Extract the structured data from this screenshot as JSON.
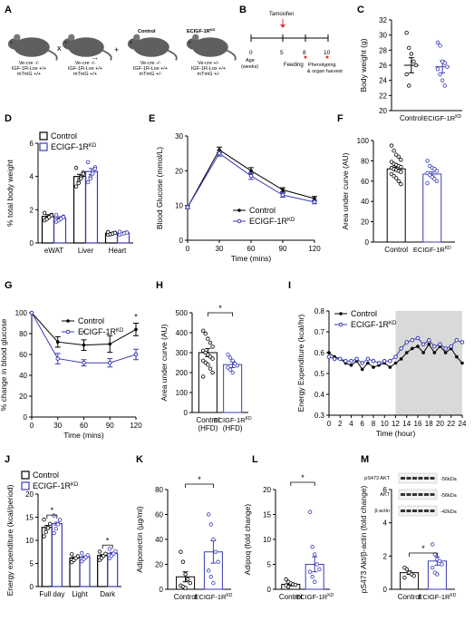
{
  "colors": {
    "control": "#000000",
    "ko": "#3b3bb8",
    "shade": "#d9d9d9",
    "mouse": "#5f5f5f"
  },
  "labels": {
    "control": "Control",
    "ko_base": "ECIGF-1R",
    "ko_sup": "KD",
    "hfd": "(HFD)",
    "star": "*"
  },
  "panel_a": {
    "letter": "A",
    "genotype_1": [
      "Ve-cre -/-",
      "IGF-1R-Lox +/+",
      "mTmG +/+"
    ],
    "genotype_2": [
      "Ve-cre -/-",
      "IGF-1R-Lox +/+",
      "mTmG +/+"
    ],
    "genotype_3": [
      "Ve-cre -/-",
      "IGF-1R-Lox +/+",
      "mTmG +/-"
    ],
    "genotype_4": [
      "Ve-cre +/-",
      "IGF-1R-Lox +/+",
      "mTmG +/-"
    ],
    "cross": "x",
    "plus": "+",
    "control_label": "Control",
    "ko_label": "ECIGF-1R",
    "ko_sup": "KD"
  },
  "panel_b": {
    "letter": "B",
    "tamoxifen": "Tamoxifen",
    "ticks": [
      "0",
      "5",
      "8",
      "10"
    ],
    "age": "Age",
    "weeks": "(weeks)",
    "feeding": "Feeding",
    "phenotyping": "Phenotyping",
    "organ_harvest": "& organ harvest"
  },
  "chart_data": [
    {
      "id": "C",
      "type": "scatter",
      "ylabel": "Body weight (g)",
      "ylim": [
        20,
        32
      ],
      "yticks": [
        "20",
        "22",
        "24",
        "26",
        "28",
        "30",
        "32"
      ],
      "categories": [
        "Control",
        "ECIGF-1R KD"
      ],
      "means": [
        26.0,
        25.8
      ],
      "sem": [
        1.0,
        0.8
      ],
      "points": [
        [
          30.3,
          28.3,
          27.5,
          26.5,
          26.0,
          24.8,
          23.3
        ],
        [
          29.0,
          28.6,
          26.5,
          26.3,
          25.8,
          25.5,
          24.8,
          24.0,
          23.3
        ]
      ]
    },
    {
      "id": "D",
      "type": "bar",
      "ylabel": "% total body weight",
      "ylim": [
        0,
        6
      ],
      "yticks": [
        "0",
        "2",
        "4",
        "6"
      ],
      "categories": [
        "eWAT",
        "Liver",
        "Heart"
      ],
      "series": [
        {
          "name": "Control",
          "values": [
            1.6,
            4.0,
            0.58
          ],
          "sem": [
            0.1,
            0.13,
            0.03
          ]
        },
        {
          "name": "ECIGF-1R KD",
          "values": [
            1.5,
            4.3,
            0.6
          ],
          "sem": [
            0.08,
            0.18,
            0.03
          ]
        }
      ],
      "legend": "top-left"
    },
    {
      "id": "E",
      "type": "line",
      "ylabel": "Blood Glucose (mmol/L)",
      "xlabel": "Time (mins)",
      "ylim": [
        0,
        30
      ],
      "yticks": [
        "0",
        "10",
        "20",
        "30"
      ],
      "x": [
        0,
        30,
        60,
        90,
        120
      ],
      "xticks": [
        "0",
        "30",
        "60",
        "90",
        "120"
      ],
      "series": [
        {
          "name": "Control",
          "values": [
            9.5,
            26.0,
            20.0,
            14.5,
            12.0
          ],
          "sem": [
            0.4,
            0.8,
            0.9,
            0.6,
            0.6
          ]
        },
        {
          "name": "ECIGF-1R KD",
          "values": [
            9.5,
            25.0,
            18.5,
            13.0,
            11.0
          ],
          "sem": [
            0.4,
            0.8,
            1.0,
            0.6,
            0.5
          ]
        }
      ],
      "legend": "bottom-right"
    },
    {
      "id": "F",
      "type": "scatter",
      "ylabel": "Area under curve (AU)",
      "ylim": [
        0,
        100
      ],
      "yticks": [
        "0",
        "20",
        "40",
        "60",
        "80",
        "100"
      ],
      "categories": [
        "Control",
        "ECIGF-1R KD"
      ],
      "means": [
        72,
        67
      ],
      "sem": [
        2,
        2
      ],
      "points": [
        [
          95,
          90,
          86,
          84,
          81,
          79,
          77,
          76,
          75,
          74,
          73,
          72,
          71,
          70,
          69,
          67,
          65,
          63,
          60,
          57
        ],
        [
          80,
          75,
          73,
          72,
          70,
          68,
          66,
          64,
          62,
          60,
          58
        ]
      ]
    },
    {
      "id": "G",
      "type": "line",
      "ylabel": "% change in blood glucose",
      "xlabel": "Time (mins)",
      "ylim": [
        0,
        100
      ],
      "yticks": [
        "0",
        "20",
        "40",
        "60",
        "80",
        "100"
      ],
      "x": [
        0,
        30,
        60,
        90,
        120
      ],
      "xticks": [
        "0",
        "30",
        "60",
        "90",
        "120"
      ],
      "series": [
        {
          "name": "Control",
          "values": [
            100,
            72,
            69,
            70,
            84
          ],
          "sem": [
            0,
            5,
            5,
            8,
            6
          ]
        },
        {
          "name": "ECIGF-1R KD",
          "values": [
            100,
            56,
            52,
            52,
            60
          ],
          "sem": [
            0,
            5,
            3,
            4,
            5
          ]
        }
      ],
      "annotations": [
        {
          "x": 60,
          "text": "*"
        },
        {
          "x": 120,
          "text": "*"
        }
      ],
      "legend": "top-right"
    },
    {
      "id": "H",
      "type": "scatter",
      "ylabel": "Area under curve (AU)",
      "ylim": [
        0,
        500
      ],
      "yticks": [
        "0",
        "100",
        "200",
        "300",
        "400",
        "500"
      ],
      "categories": [
        "Control",
        "ECIGF-1R KD"
      ],
      "means": [
        300,
        240
      ],
      "sem": [
        20,
        15
      ],
      "points": [
        [
          410,
          395,
          370,
          350,
          330,
          310,
          300,
          290,
          280,
          270,
          260,
          250,
          240,
          220,
          200,
          180
        ],
        [
          290,
          275,
          260,
          245,
          235,
          225,
          215,
          200
        ]
      ],
      "annotations": [
        {
          "text": "*"
        }
      ]
    },
    {
      "id": "I",
      "type": "line",
      "ylabel": "Energy Expenditure (kcal/hr)",
      "xlabel": "Time (hour)",
      "ylim": [
        0.3,
        0.8
      ],
      "yticks": [
        "0.3",
        "0.4",
        "0.5",
        "0.6",
        "0.7",
        "0.8"
      ],
      "xticks": [
        "0",
        "2",
        "4",
        "6",
        "8",
        "10",
        "12",
        "14",
        "16",
        "18",
        "20",
        "22",
        "24"
      ],
      "dark_phase": [
        12,
        24
      ],
      "x": [
        0,
        1,
        2,
        3,
        4,
        5,
        6,
        7,
        8,
        9,
        10,
        11,
        12,
        13,
        14,
        15,
        16,
        17,
        18,
        19,
        20,
        21,
        22,
        23,
        24
      ],
      "series": [
        {
          "name": "Control",
          "values": [
            0.6,
            0.58,
            0.57,
            0.55,
            0.54,
            0.56,
            0.52,
            0.55,
            0.53,
            0.54,
            0.55,
            0.53,
            0.55,
            0.57,
            0.6,
            0.62,
            0.63,
            0.6,
            0.64,
            0.6,
            0.63,
            0.6,
            0.62,
            0.58,
            0.55
          ]
        },
        {
          "name": "ECIGF-1R KD",
          "values": [
            0.58,
            0.57,
            0.57,
            0.56,
            0.56,
            0.57,
            0.55,
            0.57,
            0.56,
            0.55,
            0.56,
            0.56,
            0.58,
            0.62,
            0.65,
            0.66,
            0.67,
            0.64,
            0.66,
            0.63,
            0.64,
            0.62,
            0.63,
            0.66,
            0.65
          ]
        }
      ],
      "legend": "top-left"
    },
    {
      "id": "J",
      "type": "bar",
      "ylabel": "Energy expenditure (kcal/period)",
      "ylim": [
        0,
        20
      ],
      "yticks": [
        "0",
        "5",
        "10",
        "15",
        "20"
      ],
      "categories": [
        "Full day",
        "Light",
        "Dark"
      ],
      "series": [
        {
          "name": "Control",
          "values": [
            12.8,
            6.2,
            6.7
          ],
          "sem": [
            0.4,
            0.2,
            0.2
          ]
        },
        {
          "name": "ECIGF-1R KD",
          "values": [
            13.6,
            6.4,
            7.2
          ],
          "sem": [
            0.3,
            0.2,
            0.2
          ]
        }
      ],
      "annotations": [
        {
          "category": "Full day",
          "text": "*"
        },
        {
          "category": "Dark",
          "text": "*"
        }
      ],
      "legend": "top-left"
    },
    {
      "id": "K",
      "type": "scatter",
      "ylabel": "Adiponectin (µg/ml)",
      "ylim": [
        0,
        80
      ],
      "yticks": [
        "0",
        "20",
        "40",
        "60",
        "80"
      ],
      "categories": [
        "Control",
        "ECIGF-1R KD"
      ],
      "means": [
        10,
        30
      ],
      "sem": [
        4,
        9
      ],
      "points": [
        [
          30,
          22,
          12,
          8,
          5,
          3,
          2,
          1
        ],
        [
          60,
          52,
          40,
          30,
          22,
          15,
          10,
          5
        ]
      ],
      "annotations": [
        {
          "text": "*"
        }
      ]
    },
    {
      "id": "L",
      "type": "scatter",
      "ylabel": "Adipoq (fold change)",
      "ylim": [
        0,
        20
      ],
      "yticks": [
        "0",
        "5",
        "10",
        "15",
        "20"
      ],
      "categories": [
        "Control",
        "ECIGF-1R KD"
      ],
      "means": [
        1.0,
        5.0
      ],
      "sem": [
        0.3,
        1.5
      ],
      "points": [
        [
          2.0,
          1.5,
          1.2,
          1.0,
          0.9,
          0.8,
          0.5
        ],
        [
          15.5,
          8.5,
          7.0,
          5.0,
          4.0,
          3.5,
          2.5,
          1.5
        ]
      ],
      "annotations": [
        {
          "text": "*"
        }
      ]
    },
    {
      "id": "M",
      "type": "scatter",
      "ylabel": "pS473 Akt/β-actin (fold change)",
      "ylim": [
        0,
        6
      ],
      "yticks": [
        "0",
        "2",
        "4",
        "6"
      ],
      "categories": [
        "Control",
        "ECIGF-1R KD"
      ],
      "means": [
        1.0,
        1.7
      ],
      "sem": [
        0.1,
        0.25
      ],
      "points": [
        [
          1.3,
          1.2,
          1.0,
          0.9,
          0.8,
          0.7
        ],
        [
          2.7,
          2.1,
          1.8,
          1.7,
          1.5,
          1.3,
          1.0,
          0.9
        ]
      ],
      "annotations": [
        {
          "text": "*"
        }
      ],
      "blot": {
        "bands": [
          "pS473 AKT",
          "AKT",
          "β-actin"
        ],
        "sizes": [
          "-56kDa",
          "-56kDa",
          "-42kDa"
        ]
      }
    }
  ]
}
